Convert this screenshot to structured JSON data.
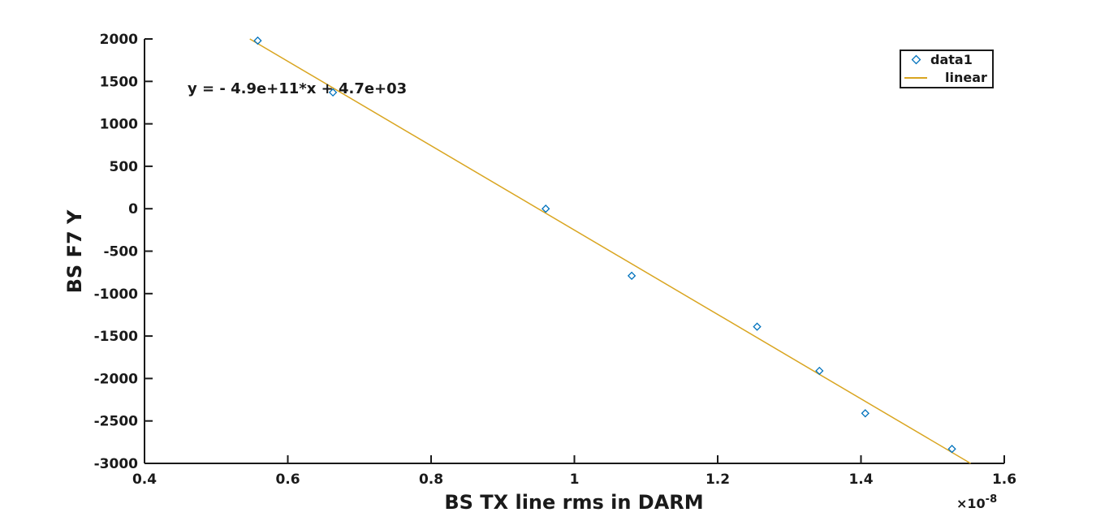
{
  "chart_data": {
    "type": "scatter",
    "xlabel": "BS TX line rms in DARM",
    "ylabel": "BS F7 Y",
    "x_exponent_label": "×10",
    "x_exponent_power": "-8",
    "xlim": [
      0.4,
      1.6
    ],
    "ylim": [
      -3000,
      2000
    ],
    "xticks": [
      0.4,
      0.6,
      0.8,
      1,
      1.2,
      1.4,
      1.6
    ],
    "xtick_labels": [
      "0.4",
      "0.6",
      "0.8",
      "1",
      "1.2",
      "1.4",
      "1.6"
    ],
    "yticks": [
      2000,
      1500,
      1000,
      500,
      0,
      -500,
      -1000,
      -1500,
      -2000,
      -2500,
      -3000
    ],
    "ytick_labels": [
      "2000",
      "1500",
      "1000",
      "500",
      "0",
      "-500",
      "-1000",
      "-1500",
      "-2000",
      "-2500",
      "-3000"
    ],
    "series": [
      {
        "name": "data1",
        "kind": "scatter",
        "color": "#0072bd",
        "x": [
          0.558,
          0.663,
          0.96,
          1.08,
          1.255,
          1.342,
          1.406,
          1.527
        ],
        "y": [
          1980,
          1370,
          0,
          -790,
          -1390,
          -1910,
          -2410,
          -2830
        ]
      },
      {
        "name": "linear",
        "kind": "line",
        "color": "#d9a520",
        "x": [
          0.547,
          1.553
        ],
        "y": [
          2000,
          -3000
        ]
      }
    ],
    "annotation": "y = - 4.9e+11*x + 4.7e+03",
    "legend": {
      "placement": "top-right",
      "entries": [
        "data1",
        "linear"
      ]
    },
    "grid": false
  }
}
